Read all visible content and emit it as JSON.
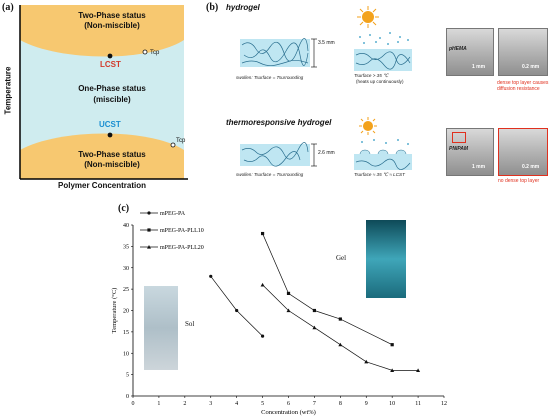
{
  "panel_a": {
    "label": "(a)",
    "top_region": "Two-Phase status",
    "top_region_sub": "(Non-miscible)",
    "lcst": "LCST",
    "t_cp_top": "Tcp",
    "middle_region": "One-Phase status",
    "middle_region_sub": "(miscible)",
    "ucst": "UCST",
    "t_cp_bottom": "Tcp",
    "bottom_region": "Two-Phase status",
    "bottom_region_sub": "(Non-miscible)",
    "y_axis": "Temperature",
    "x_axis": "Polymer Concentration",
    "colors": {
      "phase_separated": "#f7c870",
      "miscible": "#cfecef",
      "lcst_label": "#d23a2b",
      "ucst_label": "#1b8fd1"
    }
  },
  "panel_b": {
    "label": "(b)",
    "row1": {
      "title": "hydrogel",
      "thickness": "3.5 mm",
      "caption_left": "swollen: Tsurface = Tsurrounding",
      "caption_mid": "Tsurface > 35 ℃",
      "caption_mid_sub": "(heats up continuously)",
      "photo1_label": "pHEMA",
      "photo1_scale": "1 mm",
      "photo2_scale": "0.2 mm",
      "note": "dense top layer causes diffusion resistance"
    },
    "row2": {
      "title": "thermoresponsive hydrogel",
      "thickness": "2.6 mm",
      "caption_left": "swollen: Tsurface = Tsurrounding",
      "caption_mid": "Tsurface ≈ 35 ℃ ≈ LCST",
      "photo1_label": "PNIPAM",
      "photo1_scale": "1 mm",
      "photo2_scale": "0.2 mm",
      "note": "no dense top layer"
    },
    "colors": {
      "gel": "#bfe6f2",
      "fiber": "#2a6f8f",
      "sun": "#f3a21b",
      "note": "#e0301e"
    }
  },
  "panel_c": {
    "label": "(c)",
    "sol_label": "Sol",
    "gel_label": "Gel"
  },
  "chart_data": {
    "type": "line",
    "xlabel": "Concentration (wt%)",
    "ylabel": "Temperature (°C)",
    "xlim": [
      0,
      12
    ],
    "ylim": [
      0,
      40
    ],
    "xticks": [
      0,
      1,
      2,
      3,
      4,
      5,
      6,
      7,
      8,
      9,
      10,
      11,
      12
    ],
    "yticks": [
      0,
      5,
      10,
      15,
      20,
      25,
      30,
      35,
      40
    ],
    "grid": false,
    "legend_position": "top-left",
    "series": [
      {
        "name": "mPEG-PA",
        "marker": "circle",
        "x": [
          3,
          4,
          5
        ],
        "y": [
          28,
          20,
          14
        ]
      },
      {
        "name": "mPEG-PA-PLL10",
        "marker": "square",
        "x": [
          5,
          6,
          7,
          8,
          10
        ],
        "y": [
          38,
          24,
          20,
          18,
          12
        ]
      },
      {
        "name": "mPEG-PA-PLL20",
        "marker": "triangle",
        "x": [
          5,
          6,
          7,
          8,
          9,
          10,
          11
        ],
        "y": [
          26,
          20,
          16,
          12,
          8,
          6,
          6
        ]
      }
    ]
  }
}
